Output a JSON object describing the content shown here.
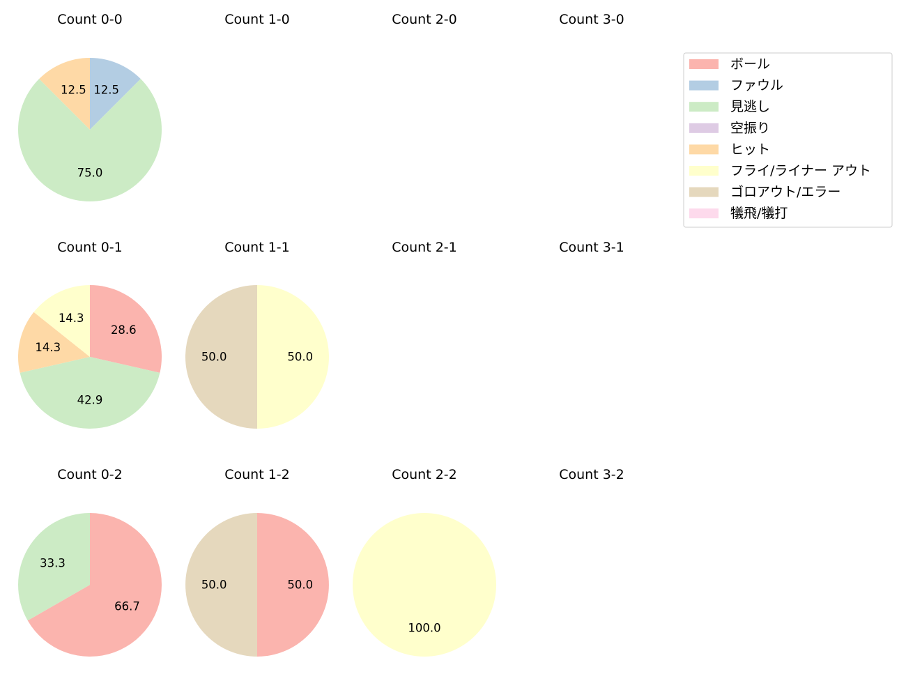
{
  "colors": {
    "ボール": "#fbb4ae",
    "ファウル": "#b3cde3",
    "見逃し": "#ccebc5",
    "空振り": "#decbe4",
    "ヒット": "#fed9a6",
    "フライ/ライナー アウト": "#ffffcc",
    "ゴロアウト/エラー": "#e5d8bd",
    "犠飛/犠打": "#fddaec"
  },
  "legend": [
    "ボール",
    "ファウル",
    "見逃し",
    "空振り",
    "ヒット",
    "フライ/ライナー アウト",
    "ゴロアウト/エラー",
    "犠飛/犠打"
  ],
  "chart_data": [
    {
      "type": "pie",
      "title": "Count 0-0",
      "slices": [
        {
          "label": "ファウル",
          "value": 12.5
        },
        {
          "label": "見逃し",
          "value": 75.0
        },
        {
          "label": "ヒット",
          "value": 12.5
        }
      ]
    },
    {
      "type": "pie",
      "title": "Count 1-0",
      "slices": []
    },
    {
      "type": "pie",
      "title": "Count 2-0",
      "slices": []
    },
    {
      "type": "pie",
      "title": "Count 3-0",
      "slices": []
    },
    {
      "type": "pie",
      "title": "Count 0-1",
      "slices": [
        {
          "label": "ボール",
          "value": 28.6
        },
        {
          "label": "見逃し",
          "value": 42.9
        },
        {
          "label": "ヒット",
          "value": 14.3
        },
        {
          "label": "フライ/ライナー アウト",
          "value": 14.3
        }
      ]
    },
    {
      "type": "pie",
      "title": "Count 1-1",
      "slices": [
        {
          "label": "フライ/ライナー アウト",
          "value": 50.0
        },
        {
          "label": "ゴロアウト/エラー",
          "value": 50.0
        }
      ]
    },
    {
      "type": "pie",
      "title": "Count 2-1",
      "slices": []
    },
    {
      "type": "pie",
      "title": "Count 3-1",
      "slices": []
    },
    {
      "type": "pie",
      "title": "Count 0-2",
      "slices": [
        {
          "label": "ボール",
          "value": 66.7
        },
        {
          "label": "見逃し",
          "value": 33.3
        }
      ]
    },
    {
      "type": "pie",
      "title": "Count 1-2",
      "slices": [
        {
          "label": "ボール",
          "value": 50.0
        },
        {
          "label": "ゴロアウト/エラー",
          "value": 50.0
        }
      ]
    },
    {
      "type": "pie",
      "title": "Count 2-2",
      "slices": [
        {
          "label": "フライ/ライナー アウト",
          "value": 100.0
        }
      ]
    },
    {
      "type": "pie",
      "title": "Count 3-2",
      "slices": []
    }
  ]
}
